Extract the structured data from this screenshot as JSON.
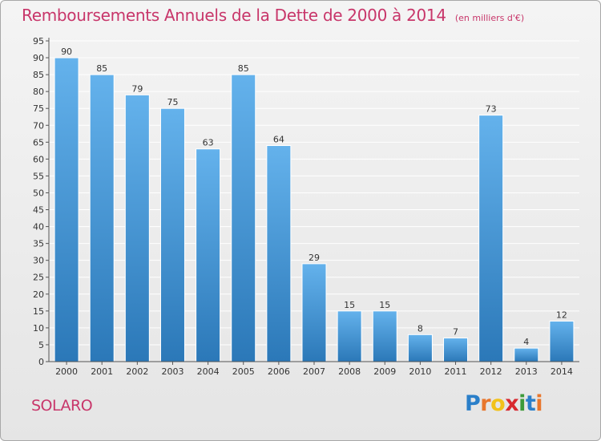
{
  "title": "Remboursements Annuels de la Dette de 2000 à 2014",
  "unit": "(en milliers d'€)",
  "commune": "SOLARO",
  "brand": {
    "letters": [
      "P",
      "r",
      "o",
      "x",
      "i",
      "t",
      "i"
    ],
    "colors": [
      "#2a7fc9",
      "#e8762c",
      "#f2c21b",
      "#d8292f",
      "#3c9a3a",
      "#2a7fc9",
      "#e8762c"
    ]
  },
  "colors": {
    "accent": "#c8366a",
    "bar_light": "#64b2ec",
    "bar_dark": "#2b78b8",
    "axis": "#555555",
    "grid": "#ffffff"
  },
  "chart_data": {
    "type": "bar",
    "categories": [
      "2000",
      "2001",
      "2002",
      "2003",
      "2004",
      "2005",
      "2006",
      "2007",
      "2008",
      "2009",
      "2010",
      "2011",
      "2012",
      "2013",
      "2014"
    ],
    "values": [
      90,
      85,
      79,
      75,
      63,
      85,
      64,
      29,
      15,
      15,
      8,
      7,
      73,
      4,
      12
    ],
    "yticks": [
      0,
      5,
      10,
      15,
      20,
      25,
      30,
      35,
      40,
      45,
      50,
      55,
      60,
      65,
      70,
      75,
      80,
      85,
      90,
      95
    ],
    "ylim": [
      0,
      95
    ],
    "grid": true,
    "data_labels": true
  }
}
